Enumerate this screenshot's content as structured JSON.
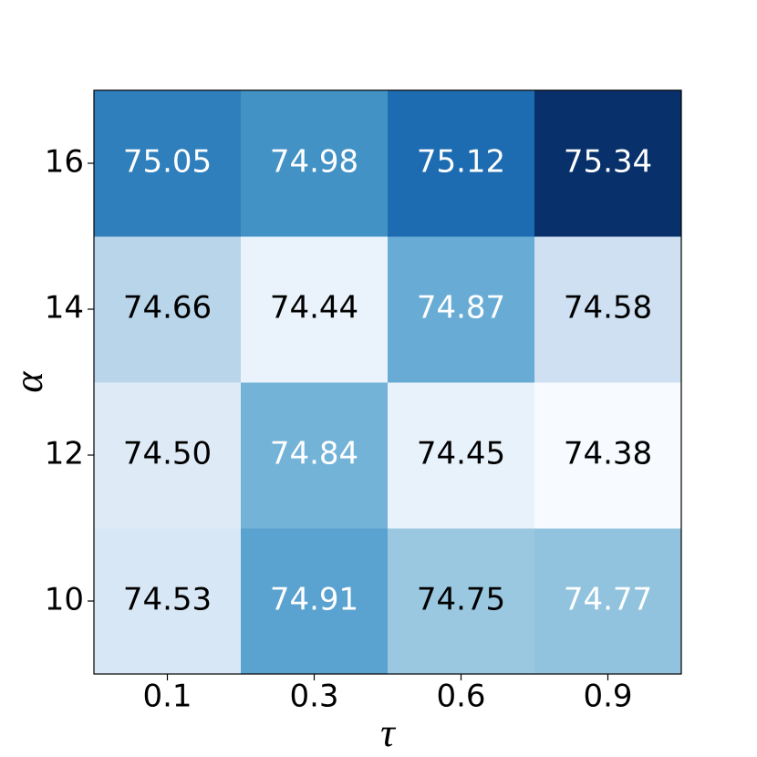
{
  "chart_data": {
    "type": "heatmap",
    "x_label": "τ",
    "y_label": "α",
    "x_categories": [
      "0.1",
      "0.3",
      "0.6",
      "0.9"
    ],
    "y_categories": [
      "10",
      "12",
      "14",
      "16"
    ],
    "colormap": "Blues",
    "values": [
      [
        74.53,
        74.91,
        74.75,
        74.77
      ],
      [
        74.5,
        74.84,
        74.45,
        74.38
      ],
      [
        74.66,
        74.44,
        74.87,
        74.58
      ],
      [
        75.05,
        74.98,
        75.12,
        75.34
      ]
    ],
    "value_labels": [
      [
        "74.53",
        "74.91",
        "74.75",
        "74.77"
      ],
      [
        "74.50",
        "74.84",
        "74.45",
        "74.38"
      ],
      [
        "74.66",
        "74.44",
        "74.87",
        "74.58"
      ],
      [
        "75.05",
        "74.98",
        "75.12",
        "75.34"
      ]
    ]
  }
}
